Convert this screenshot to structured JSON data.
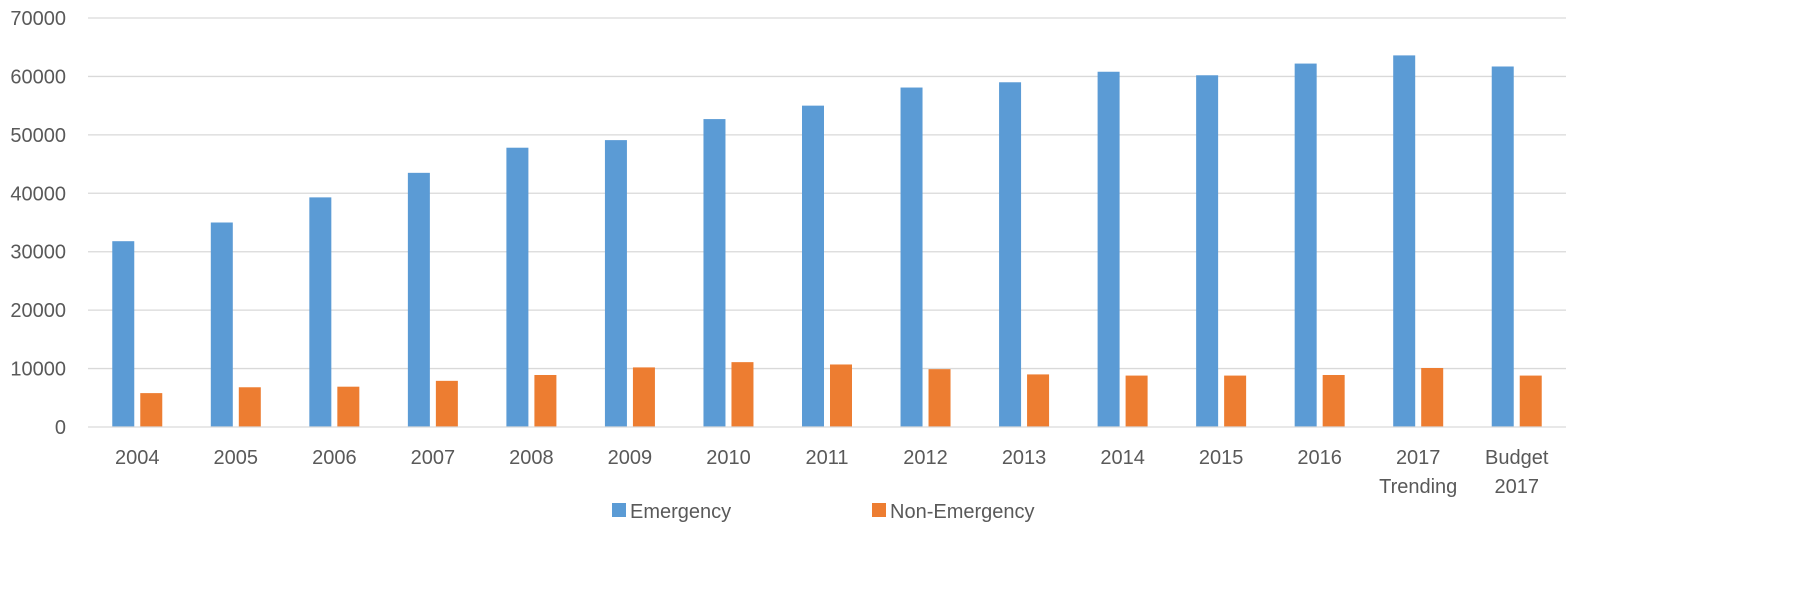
{
  "chart_data": {
    "type": "bar",
    "categories": [
      "2004",
      "2005",
      "2006",
      "2007",
      "2008",
      "2009",
      "2010",
      "2011",
      "2012",
      "2013",
      "2014",
      "2015",
      "2016",
      "2017\nTrending",
      "Budget\n2017"
    ],
    "series": [
      {
        "name": "Emergency",
        "color": "#5B9BD5",
        "values": [
          31800,
          35000,
          39300,
          43500,
          47800,
          49100,
          52700,
          55000,
          58100,
          59000,
          60800,
          60200,
          62200,
          63600,
          61700
        ]
      },
      {
        "name": "Non-Emergency",
        "color": "#ED7D31",
        "values": [
          5800,
          6800,
          6900,
          7900,
          8900,
          10200,
          11100,
          10700,
          9900,
          9000,
          8800,
          8800,
          8900,
          10100,
          8800
        ]
      }
    ],
    "ylim": [
      0,
      70000
    ],
    "yticks": [
      "0",
      "10000",
      "20000",
      "30000",
      "40000",
      "50000",
      "60000",
      "70000"
    ],
    "grid": true,
    "legend_position": "bottom"
  }
}
